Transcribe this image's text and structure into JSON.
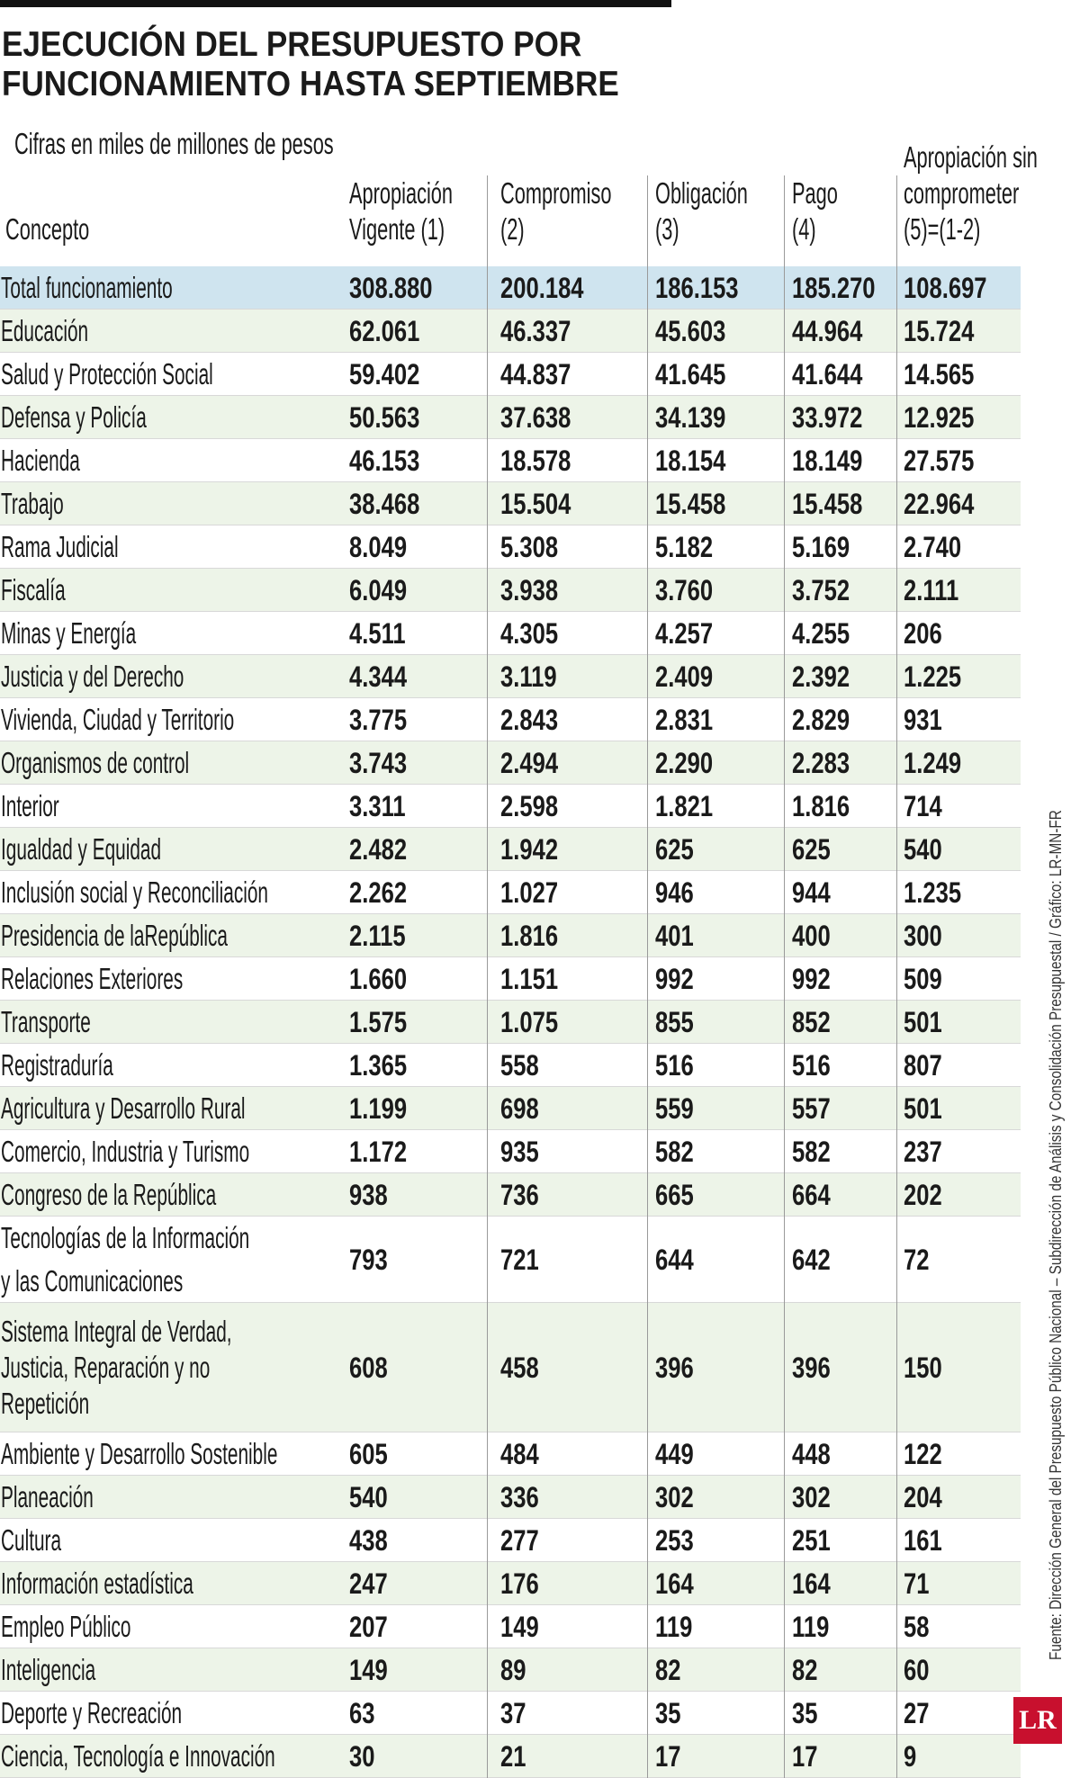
{
  "header": {
    "title_lines": [
      "EJECUCIÓN DEL PRESUPUESTO POR",
      "FUNCIONAMIENTO HASTA SEPTIEMBRE"
    ],
    "subtitle": "Cifras en miles de millones de pesos"
  },
  "table": {
    "columns": [
      [
        "Concepto"
      ],
      [
        "Apropiación",
        "Vigente (1)"
      ],
      [
        "Compromiso",
        "(2)"
      ],
      [
        "Obligación",
        "(3)"
      ],
      [
        "Pago",
        "(4)"
      ],
      [
        "Apropiación sin",
        "comprometer",
        "(5)=(1-2)"
      ]
    ],
    "rows": [
      [
        [
          "Total funcionamiento"
        ],
        "308.880",
        "200.184",
        "186.153",
        "185.270",
        "108.697"
      ],
      [
        [
          "Educación"
        ],
        "62.061",
        "46.337",
        "45.603",
        "44.964",
        "15.724"
      ],
      [
        [
          "Salud y Protección Social"
        ],
        "59.402",
        "44.837",
        "41.645",
        "41.644",
        "14.565"
      ],
      [
        [
          "Defensa y Policía"
        ],
        "50.563",
        "37.638",
        "34.139",
        "33.972",
        "12.925"
      ],
      [
        [
          "Hacienda"
        ],
        "46.153",
        "18.578",
        "18.154",
        "18.149",
        "27.575"
      ],
      [
        [
          "Trabajo"
        ],
        "38.468",
        "15.504",
        "15.458",
        "15.458",
        "22.964"
      ],
      [
        [
          "Rama Judicial"
        ],
        "8.049",
        "5.308",
        "5.182",
        "5.169",
        "2.740"
      ],
      [
        [
          "Fiscalía"
        ],
        "6.049",
        "3.938",
        "3.760",
        "3.752",
        "2.111"
      ],
      [
        [
          "Minas y Energía"
        ],
        "4.511",
        "4.305",
        "4.257",
        "4.255",
        "206"
      ],
      [
        [
          "Justicia y del Derecho"
        ],
        "4.344",
        "3.119",
        "2.409",
        "2.392",
        "1.225"
      ],
      [
        [
          "Vivienda, Ciudad y Territorio"
        ],
        "3.775",
        "2.843",
        "2.831",
        "2.829",
        "931"
      ],
      [
        [
          "Organismos de control"
        ],
        "3.743",
        "2.494",
        "2.290",
        "2.283",
        "1.249"
      ],
      [
        [
          "Interior"
        ],
        "3.311",
        "2.598",
        "1.821",
        "1.816",
        "714"
      ],
      [
        [
          "Igualdad y Equidad"
        ],
        "2.482",
        "1.942",
        "625",
        "625",
        "540"
      ],
      [
        [
          "Inclusión social y Reconciliación"
        ],
        "2.262",
        "1.027",
        "946",
        "944",
        "1.235"
      ],
      [
        [
          "Presidencia de laRepública"
        ],
        "2.115",
        "1.816",
        "401",
        "400",
        "300"
      ],
      [
        [
          "Relaciones Exteriores"
        ],
        "1.660",
        "1.151",
        "992",
        "992",
        "509"
      ],
      [
        [
          "Transporte"
        ],
        "1.575",
        "1.075",
        "855",
        "852",
        "501"
      ],
      [
        [
          "Registraduría"
        ],
        "1.365",
        "558",
        "516",
        "516",
        "807"
      ],
      [
        [
          "Agricultura y Desarrollo Rural"
        ],
        "1.199",
        "698",
        "559",
        "557",
        "501"
      ],
      [
        [
          "Comercio, Industria y Turismo"
        ],
        "1.172",
        "935",
        "582",
        "582",
        "237"
      ],
      [
        [
          "Congreso de la República"
        ],
        "938",
        "736",
        "665",
        "664",
        "202"
      ],
      [
        [
          "Tecnologías de la Información",
          "y las Comunicaciones"
        ],
        "793",
        "721",
        "644",
        "642",
        "72"
      ],
      [
        [
          "Sistema Integral de Verdad,",
          "Justicia, Reparación y no",
          "Repetición"
        ],
        "608",
        "458",
        "396",
        "396",
        "150"
      ],
      [
        [
          "Ambiente y Desarrollo Sostenible"
        ],
        "605",
        "484",
        "449",
        "448",
        "122"
      ],
      [
        [
          "Planeación"
        ],
        "540",
        "336",
        "302",
        "302",
        "204"
      ],
      [
        [
          "Cultura"
        ],
        "438",
        "277",
        "253",
        "251",
        "161"
      ],
      [
        [
          "Información estadística"
        ],
        "247",
        "176",
        "164",
        "164",
        "71"
      ],
      [
        [
          "Empleo Público"
        ],
        "207",
        "149",
        "119",
        "119",
        "58"
      ],
      [
        [
          "Inteligencia"
        ],
        "149",
        "89",
        "82",
        "82",
        "60"
      ],
      [
        [
          "Deporte y Recreación"
        ],
        "63",
        "37",
        "35",
        "35",
        "27"
      ],
      [
        [
          "Ciencia, Tecnología e Innovación"
        ],
        "30",
        "21",
        "17",
        "17",
        "9"
      ]
    ]
  },
  "source": "Fuente: Dirección General del Presupuesto Público Nacional – Subdirección de Análisis y Consolidación Presupuestal / Gráfico: LR-MN-FR",
  "logo": "LR"
}
